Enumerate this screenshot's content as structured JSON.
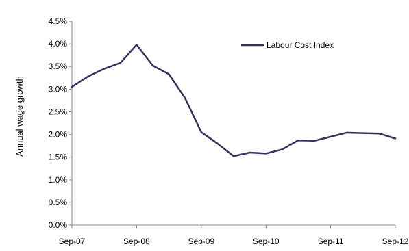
{
  "chart_data": {
    "type": "line",
    "ylabel": "Annual wage growth",
    "ylim": [
      0,
      4.5
    ],
    "y_ticks": [
      "0.0%",
      "0.5%",
      "1.0%",
      "1.5%",
      "2.0%",
      "2.5%",
      "3.0%",
      "3.5%",
      "4.0%",
      "4.5%"
    ],
    "x_ticks": [
      "Sep-07",
      "Sep-08",
      "Sep-09",
      "Sep-10",
      "Sep-11",
      "Sep-12"
    ],
    "x": [
      "Sep-07",
      "Dec-07",
      "Mar-08",
      "Jun-08",
      "Sep-08",
      "Dec-08",
      "Mar-09",
      "Jun-09",
      "Sep-09",
      "Dec-09",
      "Mar-10",
      "Jun-10",
      "Sep-10",
      "Dec-10",
      "Mar-11",
      "Jun-11",
      "Sep-11",
      "Dec-11",
      "Mar-12",
      "Jun-12",
      "Sep-12"
    ],
    "series": [
      {
        "name": "Labour Cost Index",
        "color": "#3c2d5c",
        "values": [
          3.05,
          3.28,
          3.45,
          3.58,
          3.98,
          3.52,
          3.33,
          2.8,
          2.05,
          1.8,
          1.52,
          1.6,
          1.58,
          1.67,
          1.87,
          1.86,
          1.95,
          2.04,
          2.03,
          2.02,
          1.91
        ]
      }
    ],
    "grid": false,
    "legend": "top-right"
  }
}
